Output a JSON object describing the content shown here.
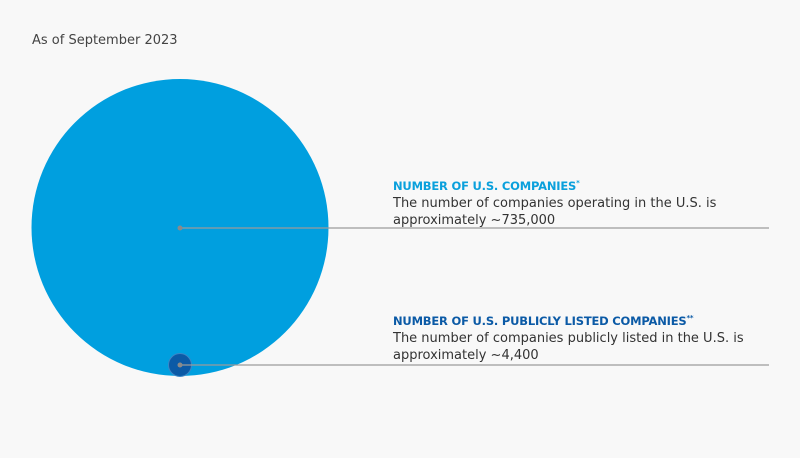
{
  "subtitle": "As of September 2023",
  "chart_data": {
    "type": "proportional-area",
    "title": "As of September 2023",
    "series": [
      {
        "name": "NUMBER OF U.S. COMPANIES",
        "marker": "*",
        "value": 735000,
        "color": "#009fdf",
        "description": "The number of companies operating in the U.S. is approximately ~735,000"
      },
      {
        "name": "NUMBER OF U.S. PUBLICLY LISTED COMPANIES",
        "marker": "**",
        "value": 4400,
        "color": "#0b5aa6",
        "description": "The number of companies publicly listed in the U.S. is approximately ~4,400"
      }
    ]
  }
}
